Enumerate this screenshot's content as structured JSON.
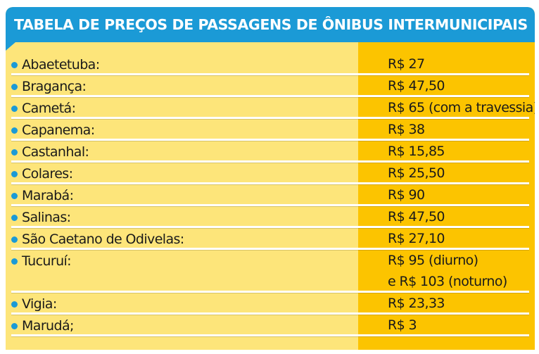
{
  "title": "TABELA DE PREÇOS DE PASSAGENS DE ÔNIBUS INTERMUNICIPAIS",
  "colors": {
    "header": "#1b9ad6",
    "left_bg": "#fde57a",
    "right_bg": "#fcc400",
    "bullet": "#1b9ad6"
  },
  "rows": [
    {
      "city": "Abaetetuba:",
      "price": "R$ 27"
    },
    {
      "city": "Bragança:",
      "price": "R$ 47,50"
    },
    {
      "city": "Cametá:",
      "price": "R$ 65 (com a travessia)"
    },
    {
      "city": "Capanema:",
      "price": "R$ 38"
    },
    {
      "city": "Castanhal:",
      "price": "R$ 15,85"
    },
    {
      "city": "Colares:",
      "price": "R$ 25,50"
    },
    {
      "city": "Marabá:",
      "price": "R$ 90"
    },
    {
      "city": "Salinas:",
      "price": "R$ 47,50"
    },
    {
      "city": "São Caetano de Odivelas:",
      "price": "R$ 27,10"
    },
    {
      "city": "Tucuruí:",
      "price": "R$ 95 (diurno)",
      "price_line2": "e R$ 103 (noturno)"
    },
    {
      "city": "Vigia:",
      "price": "R$ 23,33"
    },
    {
      "city": "Marudá;",
      "price": "R$ 3"
    }
  ]
}
